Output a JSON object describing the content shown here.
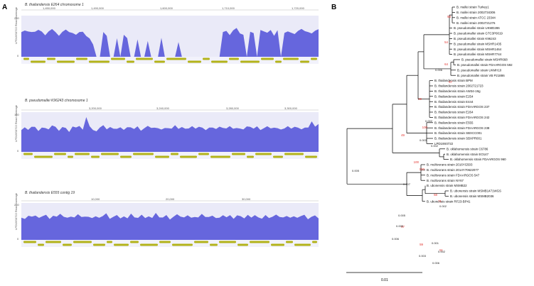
{
  "panel_a": {
    "label": "A",
    "tracks": [
      {
        "title": "B. thailandensis E264 chromosome 1",
        "y_label": "LPD19S0722 Read coverage",
        "y_max": "250",
        "y_zero": "0",
        "positions": [
          "1,450,000",
          "1,490,000",
          "1,600,000",
          "1,710,000",
          "1,720,000"
        ],
        "profile": [
          0.6,
          0.62,
          0.58,
          0.55,
          0.6,
          0.63,
          0.57,
          0.52,
          0.6,
          0.64,
          0.55,
          0.5,
          0.58,
          0.62,
          0.6,
          0.56,
          0.5,
          0.55,
          0.6,
          0.48,
          0.4,
          0.3,
          0,
          0,
          0.55,
          0.5,
          0,
          0,
          0.45,
          0,
          0.5,
          0.4,
          0,
          0,
          0.38,
          0,
          0,
          0.35,
          0,
          0,
          0,
          0.42,
          0,
          0,
          0,
          0,
          0.35,
          0,
          0,
          0,
          0,
          0,
          0,
          0,
          0,
          0,
          0,
          0,
          0,
          0.55,
          0.62,
          0.5,
          0.6,
          0.7,
          0.55,
          0.5,
          0,
          0.6,
          0.55,
          0,
          0.65,
          0.6,
          0.55,
          0.6,
          0.5,
          0.62,
          0,
          0.58,
          0.6,
          0.55,
          0.5,
          0.62,
          0.65,
          0.58,
          0.6,
          0.55,
          0.6,
          0.62
        ]
      },
      {
        "title": "B. pseudomallei K96243 chromosome 1",
        "y_label": "LPD19S0722 Read coverage",
        "y_max": "150",
        "y_zero": "0",
        "positions": [
          "3,200,000",
          "3,240,000",
          "3,280,000",
          "3,300,000"
        ],
        "profile": [
          0.55,
          0.6,
          0.52,
          0.58,
          0.62,
          0.5,
          0.57,
          0.6,
          0.55,
          0.63,
          0.58,
          0.52,
          0.6,
          0.56,
          0.5,
          0.62,
          0.58,
          0.6,
          0.55,
          0.85,
          0.6,
          0.55,
          0.5,
          0.58,
          0.62,
          0.56,
          0.6,
          0.54,
          0.58,
          0.6,
          0.52,
          0.57,
          0.61,
          0.55,
          0.6,
          0.53,
          0.58,
          0.62,
          0.55,
          0.6,
          0.57,
          0.52,
          0.6,
          0.58,
          0.55,
          0.62,
          0.57,
          0.6,
          0.54,
          0.59,
          0.63,
          0.55,
          0.58,
          0.6,
          0.52,
          0.57,
          0.61,
          0.56,
          0.6,
          0.55,
          0.58,
          0.62,
          0.54,
          0.6,
          0.57,
          0.53,
          0.59,
          0.62,
          0.56,
          0.6,
          0.55,
          0.58,
          0.61,
          0.54,
          0.6,
          0.57,
          0.52,
          0.59,
          0.63,
          0.55,
          0.58,
          0.6,
          0.54,
          0.57,
          0.61,
          0.75,
          0.6,
          0.65
        ]
      },
      {
        "title": "B. thailandensis E555 contig 19",
        "y_label": "LPD19S0722 Read coverage",
        "y_max": "250",
        "y_zero": "0",
        "positions": [
          "10,000",
          "20,000",
          "30,000"
        ],
        "profile": [
          0.6,
          0.55,
          0.62,
          0.58,
          0.65,
          0.57,
          0.6,
          0.68,
          0.55,
          0.62,
          0.58,
          0.7,
          0.6,
          0.56,
          0.63,
          0.59,
          0.66,
          0.57,
          0.62,
          0.6,
          0.55,
          0.64,
          0.58,
          0.61,
          0.67,
          0.56,
          0.6,
          0.63,
          0.58,
          0.62,
          0.55,
          0.66,
          0.6,
          0.57,
          0.64,
          0.59,
          0.62,
          0.56,
          0.68,
          0.6,
          0.58,
          0.63,
          0.55,
          0.61,
          0.66,
          0.58,
          0.6,
          0.64,
          0.56,
          0.62,
          0.59,
          0.67,
          0.57,
          0.61,
          0.63,
          0.55,
          0.6,
          0.65,
          0.58,
          0.62,
          0.56,
          0.64,
          0.6,
          0.58,
          0.66,
          0.57,
          0.62,
          0.6,
          0.55,
          0.63,
          0.59,
          0.61,
          0.65,
          0.57,
          0.6,
          0.62,
          0.56,
          0.64,
          0.58,
          0.61,
          0.63,
          0.55,
          0.6,
          0.62,
          0.58
        ]
      }
    ]
  },
  "panel_b": {
    "label": "B",
    "scale_label": "0.01",
    "tips": [
      "B. mallei strain Turkey1",
      "B. mallei strain 2002734306",
      "B. mallei strain ATCC 23344",
      "B. mallei strain 2002721276",
      "B. pseudomallei strain UKMD286",
      "B. pseudomallei strain GTC3P0019",
      "B. pseudomallei strain K96243",
      "B. pseudomallei strain MSHR1435",
      "B. pseudomallei strain MSHR1464",
      "B. pseudomallei strain MSHR7744",
      "B. pseudomallei strain MSHR668",
      "B. pseudomallei strain FDAARGOS 592",
      "B. pseudomallei strain UKMH10",
      "B. pseudomallei strain VB P21886",
      "B. thailandensis strain BPM",
      "B. thailandensis strain 2002721723",
      "B. thailandensis strain AW34-19g",
      "B. thailandensis strain E254",
      "B. thailandensis strain E444",
      "B. thailandensis strain FDAARGOS 237",
      "B. thailandensis strain E264",
      "B. thailandensis strain FDAARGOS 242",
      "B. thailandensis strain E555",
      "B. thailandensis strain FDAARGOS 238",
      "B. thailandensis strain SBXCC001",
      "B. thailandensis strain SBXPR001",
      "LPD19S0722",
      "B. oklahomensis strain C6786",
      "B. oklahomensis strain EO147",
      "B. oklahomensis strain FDAARGOS 960",
      "B. multivorans strain 2016YG503",
      "B. multivorans strain 2014Y70622077",
      "B. multivorans strain FDAARGOS 547",
      "B. multivorans strain NY67",
      "B. ubonensis strain MSMB22",
      "B. ubonensis strain MSMB1471WGS",
      "B. ubonensis strain MSMB2036",
      "B. ubonensis strain RF23-BP41"
    ],
    "bootstrap": [
      "58",
      "54",
      "64",
      "57",
      "29",
      "49",
      "100",
      "100",
      "68",
      "71",
      "100",
      "97",
      "59",
      "51"
    ],
    "branch_lengths": [
      "0.006",
      "0.002",
      "0.003",
      "0.002",
      "0.005",
      "0.007",
      "0.002",
      "0.005",
      "0.005",
      "0.001",
      "0.006",
      "0.003",
      "0.006",
      "0.002"
    ]
  }
}
